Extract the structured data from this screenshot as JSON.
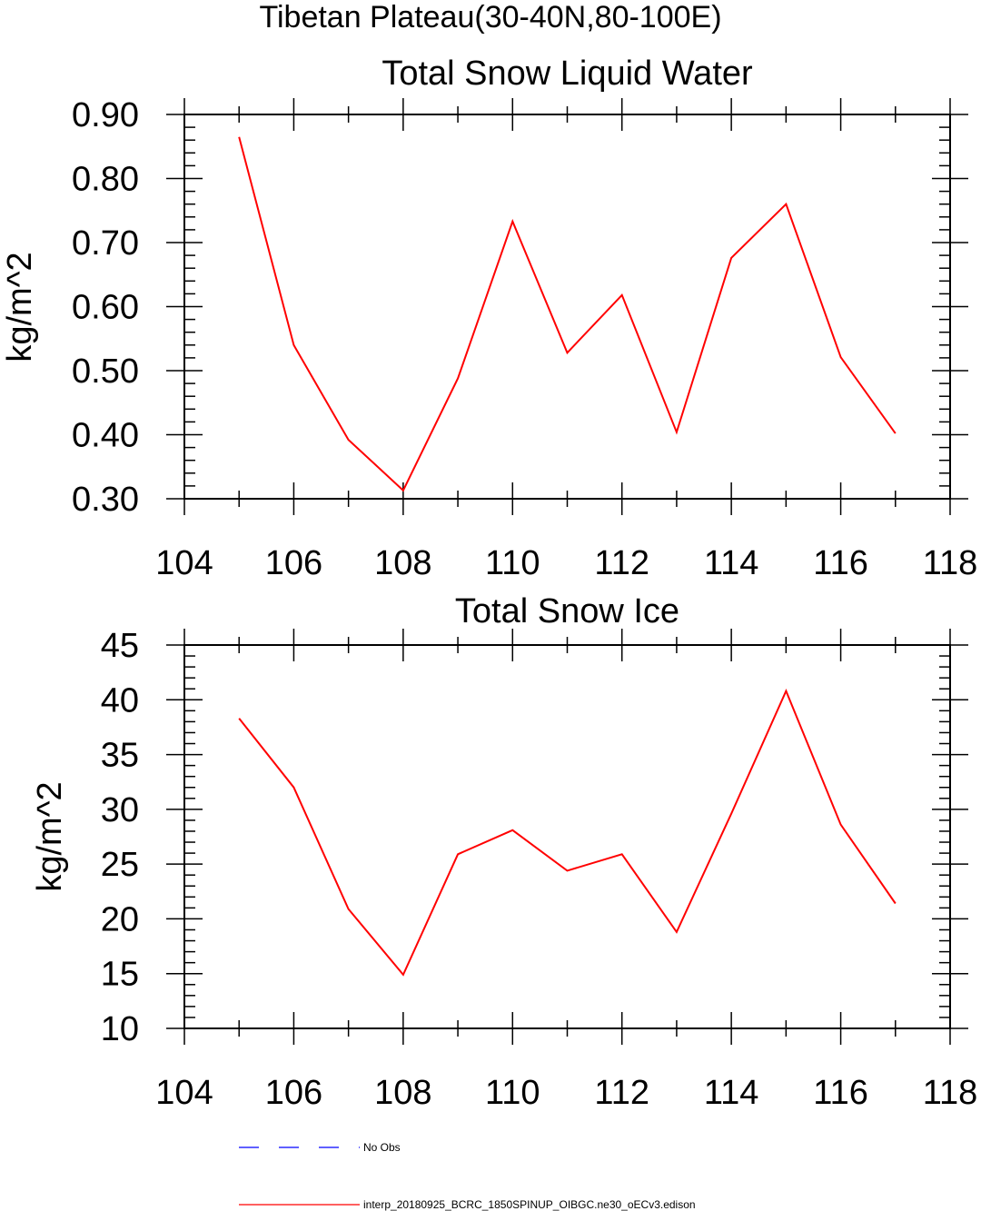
{
  "page_title": "Tibetan Plateau(30-40N,80-100E)",
  "chart_data": [
    {
      "type": "line",
      "title": "Total Snow Liquid Water",
      "xlabel": "",
      "ylabel": "kg/m^2",
      "xlim": [
        104,
        118
      ],
      "ylim": [
        0.3,
        0.9
      ],
      "x_ticks": [
        "104",
        "106",
        "108",
        "110",
        "112",
        "114",
        "116",
        "118"
      ],
      "y_ticks": [
        "0.30",
        "0.40",
        "0.50",
        "0.60",
        "0.70",
        "0.80",
        "0.90"
      ],
      "grid": false,
      "series": [
        {
          "name": "interp_20180925_BCRC_1850SPINUP_OIBGC.ne30_oECv3.edison",
          "color": "#ff0000",
          "x": [
            105,
            106,
            107,
            108,
            109,
            110,
            111,
            112,
            113,
            114,
            115,
            116,
            117
          ],
          "values": [
            0.865,
            0.54,
            0.392,
            0.313,
            0.488,
            0.733,
            0.528,
            0.618,
            0.404,
            0.676,
            0.76,
            0.521,
            0.402
          ]
        }
      ]
    },
    {
      "type": "line",
      "title": "Total Snow Ice",
      "xlabel": "",
      "ylabel": "kg/m^2",
      "xlim": [
        104,
        118
      ],
      "ylim": [
        10,
        45
      ],
      "x_ticks": [
        "104",
        "106",
        "108",
        "110",
        "112",
        "114",
        "116",
        "118"
      ],
      "y_ticks": [
        "10",
        "15",
        "20",
        "25",
        "30",
        "35",
        "40",
        "45"
      ],
      "grid": false,
      "series": [
        {
          "name": "interp_20180925_BCRC_1850SPINUP_OIBGC.ne30_oECv3.edison",
          "color": "#ff0000",
          "x": [
            105,
            106,
            107,
            108,
            109,
            110,
            111,
            112,
            113,
            114,
            115,
            116,
            117
          ],
          "values": [
            38.3,
            32.0,
            20.9,
            14.9,
            25.9,
            28.1,
            24.4,
            25.9,
            18.8,
            29.6,
            40.8,
            28.6,
            21.4
          ]
        }
      ]
    }
  ],
  "legend": {
    "placement": "bottom",
    "items": [
      {
        "label": "No Obs",
        "color": "#0000ff",
        "style": "dashed"
      },
      {
        "label": "interp_20180925_BCRC_1850SPINUP_OIBGC.ne30_oECv3.edison",
        "color": "#ff0000",
        "style": "solid"
      }
    ]
  }
}
